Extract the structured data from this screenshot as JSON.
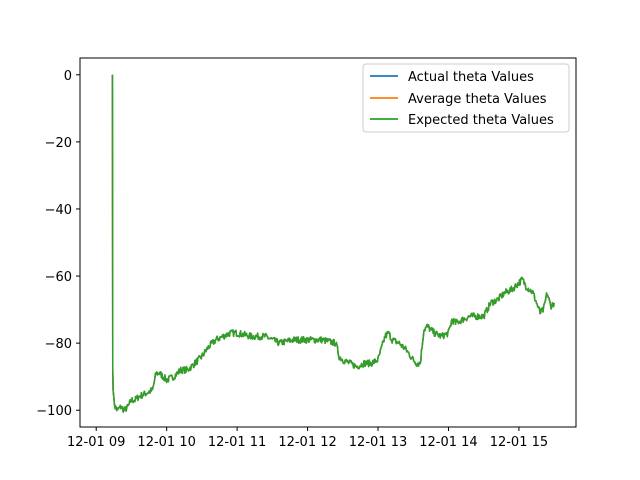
{
  "chart_data": {
    "type": "line",
    "title": "",
    "xlabel": "",
    "ylabel": "",
    "x_ticks": [
      "12-01 09",
      "12-01 10",
      "12-01 11",
      "12-01 12",
      "12-01 13",
      "12-01 14",
      "12-01 15"
    ],
    "y_ticks": [
      "0",
      "−20",
      "−40",
      "−60",
      "−80",
      "−100"
    ],
    "xlim": [
      8.77,
      15.81
    ],
    "ylim": [
      -105,
      5
    ],
    "legend_placement": "top-right",
    "grid": false,
    "x_hours": [
      9.23,
      9.235,
      9.24,
      9.25,
      9.27,
      9.3,
      9.35,
      9.4,
      9.45,
      9.5,
      9.55,
      9.6,
      9.7,
      9.8,
      9.85,
      9.9,
      10.0,
      10.1,
      10.2,
      10.3,
      10.4,
      10.5,
      10.6,
      10.7,
      10.8,
      10.9,
      11.0,
      11.2,
      11.4,
      11.6,
      11.8,
      12.0,
      12.2,
      12.4,
      12.45,
      12.5,
      12.6,
      12.7,
      12.8,
      12.9,
      13.0,
      13.1,
      13.15,
      13.2,
      13.3,
      13.4,
      13.5,
      13.55,
      13.6,
      13.65,
      13.7,
      13.8,
      13.9,
      14.0,
      14.05,
      14.1,
      14.2,
      14.3,
      14.4,
      14.5,
      14.6,
      14.7,
      14.8,
      14.9,
      15.0,
      15.05,
      15.1,
      15.2,
      15.25,
      15.3,
      15.35,
      15.4,
      15.45,
      15.5
    ],
    "series": [
      {
        "name": "Actual theta Values",
        "color": "#1f77b4",
        "values": [
          0,
          -88,
          -93,
          -97,
          -99,
          -100,
          -99,
          -100,
          -99,
          -97,
          -97,
          -96,
          -95,
          -94,
          -89,
          -89,
          -91,
          -90,
          -88,
          -88,
          -86,
          -84,
          -81,
          -79,
          -78,
          -77,
          -77,
          -78,
          -78,
          -80,
          -79,
          -79,
          -79,
          -80,
          -84,
          -85,
          -86,
          -87,
          -86,
          -86,
          -85,
          -78,
          -77,
          -79,
          -80,
          -82,
          -85,
          -86,
          -86,
          -76,
          -75,
          -77,
          -78,
          -77,
          -73,
          -74,
          -73,
          -72,
          -72,
          -72,
          -68,
          -67,
          -65,
          -64,
          -62,
          -61,
          -63,
          -65,
          -68,
          -71,
          -70,
          -65,
          -69,
          -68
        ]
      },
      {
        "name": "Average theta Values",
        "color": "#ff7f0e",
        "values": [
          0,
          -88,
          -93,
          -97,
          -99,
          -100,
          -99,
          -100,
          -99,
          -97,
          -97,
          -96,
          -95,
          -94,
          -89,
          -89,
          -91,
          -90,
          -88,
          -88,
          -86,
          -84,
          -81,
          -79,
          -78,
          -77,
          -77,
          -78,
          -78,
          -80,
          -79,
          -79,
          -79,
          -80,
          -84,
          -85,
          -86,
          -87,
          -86,
          -86,
          -85,
          -78,
          -77,
          -79,
          -80,
          -82,
          -85,
          -86,
          -86,
          -76,
          -75,
          -77,
          -78,
          -77,
          -73,
          -74,
          -73,
          -72,
          -72,
          -72,
          -68,
          -67,
          -65,
          -64,
          -62,
          -61,
          -63,
          -65,
          -68,
          -71,
          -70,
          -65,
          -69,
          -68
        ]
      },
      {
        "name": "Expected theta Values",
        "color": "#2ca02c",
        "values": [
          0,
          -88,
          -93,
          -97,
          -99,
          -100,
          -99,
          -100,
          -99,
          -97,
          -97,
          -96,
          -95,
          -94,
          -89,
          -89,
          -91,
          -90,
          -88,
          -88,
          -86,
          -84,
          -81,
          -79,
          -78,
          -77,
          -77,
          -78,
          -78,
          -80,
          -79,
          -79,
          -79,
          -80,
          -84,
          -85,
          -86,
          -87,
          -86,
          -86,
          -85,
          -78,
          -77,
          -79,
          -80,
          -82,
          -85,
          -86,
          -86,
          -76,
          -75,
          -77,
          -78,
          -77,
          -73,
          -74,
          -73,
          -72,
          -72,
          -72,
          -68,
          -67,
          -65,
          -64,
          -62,
          -61,
          -63,
          -65,
          -68,
          -71,
          -70,
          -65,
          -69,
          -68
        ]
      }
    ]
  }
}
